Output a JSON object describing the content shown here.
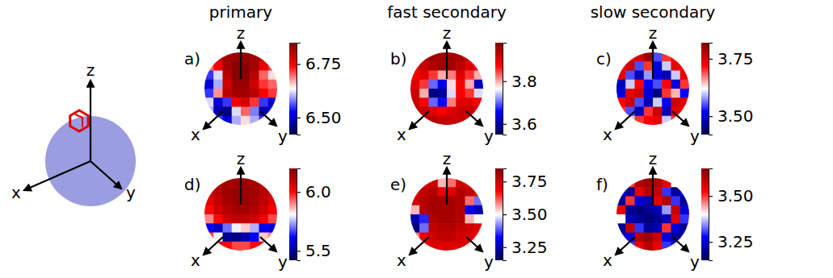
{
  "chart_data": {
    "type": "heatmap",
    "columns": [
      "primary",
      "fast secondary",
      "slow secondary"
    ],
    "axis_labels": [
      "x",
      "y",
      "z"
    ],
    "panels": [
      {
        "letter": "a)",
        "colorbar": {
          "range": [
            6.42,
            6.85
          ],
          "ticks": [
            {
              "value": 6.5,
              "label": "6.50"
            },
            {
              "value": 6.75,
              "label": "6.75"
            }
          ]
        },
        "cells": [
          [
            6.8,
            6.8,
            6.82,
            6.83,
            6.83,
            6.82,
            6.8,
            6.8
          ],
          [
            6.7,
            6.75,
            6.82,
            6.84,
            6.84,
            6.82,
            6.76,
            6.72
          ],
          [
            6.55,
            6.62,
            6.8,
            6.84,
            6.84,
            6.8,
            6.7,
            6.65
          ],
          [
            6.5,
            6.6,
            6.78,
            6.83,
            6.83,
            6.78,
            6.72,
            6.7
          ],
          [
            6.55,
            6.68,
            6.8,
            6.82,
            6.82,
            6.8,
            6.75,
            6.72
          ],
          [
            6.62,
            6.5,
            6.55,
            6.75,
            6.78,
            6.72,
            6.55,
            6.5
          ],
          [
            6.6,
            6.48,
            6.45,
            6.62,
            6.7,
            6.58,
            6.48,
            6.5
          ],
          [
            6.6,
            6.55,
            6.5,
            6.6,
            6.65,
            6.6,
            6.55,
            6.55
          ]
        ]
      },
      {
        "letter": "b)",
        "colorbar": {
          "range": [
            3.55,
            3.98
          ],
          "ticks": [
            3.6,
            3.8
          ]
        },
        "cells": [
          [
            3.92,
            3.94,
            3.95,
            3.95,
            3.95,
            3.94,
            3.92,
            3.9
          ],
          [
            3.9,
            3.92,
            3.94,
            3.95,
            3.95,
            3.93,
            3.9,
            3.88
          ],
          [
            3.88,
            3.9,
            3.85,
            3.8,
            3.82,
            3.9,
            3.85,
            3.8
          ],
          [
            3.9,
            3.85,
            3.7,
            3.65,
            3.78,
            3.88,
            3.8,
            3.62
          ],
          [
            3.92,
            3.8,
            3.58,
            3.6,
            3.75,
            3.88,
            3.85,
            3.75
          ],
          [
            3.92,
            3.88,
            3.7,
            3.66,
            3.82,
            3.9,
            3.9,
            3.88
          ],
          [
            3.93,
            3.92,
            3.9,
            3.88,
            3.9,
            3.92,
            3.92,
            3.9
          ],
          [
            3.92,
            3.93,
            3.93,
            3.92,
            3.92,
            3.92,
            3.92,
            3.9
          ]
        ]
      },
      {
        "letter": "c)",
        "colorbar": {
          "range": [
            3.42,
            3.82
          ],
          "ticks": [
            {
              "value": 3.5,
              "label": "3.50"
            },
            3.75
          ]
        },
        "cells": [
          [
            3.7,
            3.72,
            3.75,
            3.8,
            3.55,
            3.7,
            3.72,
            3.7
          ],
          [
            3.72,
            3.76,
            3.55,
            3.7,
            3.5,
            3.6,
            3.74,
            3.72
          ],
          [
            3.74,
            3.55,
            3.48,
            3.58,
            3.5,
            3.48,
            3.6,
            3.74
          ],
          [
            3.48,
            3.6,
            3.72,
            3.52,
            3.55,
            3.72,
            3.5,
            3.7
          ],
          [
            3.5,
            3.74,
            3.76,
            3.5,
            3.45,
            3.7,
            3.65,
            3.52
          ],
          [
            3.72,
            3.76,
            3.55,
            3.48,
            3.6,
            3.52,
            3.76,
            3.74
          ],
          [
            3.7,
            3.55,
            3.48,
            3.7,
            3.76,
            3.48,
            3.74,
            3.72
          ],
          [
            3.7,
            3.6,
            3.7,
            3.72,
            3.74,
            3.6,
            3.7,
            3.7
          ]
        ]
      },
      {
        "letter": "d)",
        "colorbar": {
          "range": [
            5.42,
            6.2
          ],
          "ticks": [
            5.5,
            {
              "value": 6.0,
              "label": "6.0"
            }
          ]
        },
        "cells": [
          [
            6.1,
            6.12,
            6.14,
            6.15,
            6.15,
            6.14,
            6.12,
            6.1
          ],
          [
            6.08,
            6.12,
            6.15,
            6.16,
            6.16,
            6.15,
            6.12,
            6.08
          ],
          [
            6.05,
            6.1,
            6.14,
            6.16,
            6.16,
            6.14,
            6.1,
            6.06
          ],
          [
            6.0,
            6.08,
            6.12,
            6.14,
            6.14,
            6.12,
            6.08,
            6.02
          ],
          [
            5.9,
            6.0,
            6.08,
            6.1,
            6.1,
            6.08,
            6.02,
            5.95
          ],
          [
            5.6,
            5.55,
            5.7,
            5.8,
            5.85,
            5.75,
            5.6,
            5.58
          ],
          [
            5.95,
            5.8,
            5.5,
            5.48,
            5.52,
            5.6,
            5.85,
            5.9
          ],
          [
            6.05,
            6.08,
            6.0,
            5.95,
            5.95,
            6.0,
            6.05,
            6.05
          ]
        ]
      },
      {
        "letter": "e)",
        "colorbar": {
          "range": [
            3.15,
            3.85
          ],
          "ticks": [
            3.25,
            {
              "value": 3.5,
              "label": "3.50"
            },
            3.75
          ]
        },
        "cells": [
          [
            3.7,
            3.72,
            3.75,
            3.55,
            3.6,
            3.75,
            3.72,
            3.7
          ],
          [
            3.72,
            3.76,
            3.78,
            3.7,
            3.72,
            3.78,
            3.76,
            3.72
          ],
          [
            3.74,
            3.78,
            3.8,
            3.8,
            3.8,
            3.78,
            3.6,
            3.4
          ],
          [
            3.55,
            3.78,
            3.8,
            3.8,
            3.8,
            3.78,
            3.3,
            3.25
          ],
          [
            3.25,
            3.35,
            3.78,
            3.8,
            3.8,
            3.78,
            3.55,
            3.5
          ],
          [
            3.2,
            3.4,
            3.76,
            3.78,
            3.78,
            3.76,
            3.74,
            3.72
          ],
          [
            3.6,
            3.7,
            3.74,
            3.76,
            3.76,
            3.74,
            3.72,
            3.7
          ],
          [
            3.7,
            3.72,
            3.72,
            3.72,
            3.72,
            3.72,
            3.7,
            3.7
          ]
        ]
      },
      {
        "letter": "f)",
        "colorbar": {
          "range": [
            3.15,
            3.65
          ],
          "ticks": [
            3.25,
            {
              "value": 3.5,
              "label": "3.50"
            }
          ]
        },
        "cells": [
          [
            3.4,
            3.5,
            3.6,
            3.62,
            3.6,
            3.55,
            3.4,
            3.3
          ],
          [
            3.25,
            3.2,
            3.55,
            3.6,
            3.58,
            3.3,
            3.2,
            3.25
          ],
          [
            3.2,
            3.5,
            3.25,
            3.22,
            3.55,
            3.6,
            3.3,
            3.2
          ],
          [
            3.55,
            3.2,
            3.18,
            3.2,
            3.22,
            3.35,
            3.58,
            3.25
          ],
          [
            3.4,
            3.22,
            3.2,
            3.18,
            3.2,
            3.22,
            3.55,
            3.3
          ],
          [
            3.2,
            3.58,
            3.3,
            3.2,
            3.22,
            3.5,
            3.25,
            3.2
          ],
          [
            3.22,
            3.25,
            3.6,
            3.62,
            3.58,
            3.25,
            3.2,
            3.22
          ],
          [
            3.25,
            3.3,
            3.55,
            3.6,
            3.55,
            3.3,
            3.25,
            3.25
          ]
        ]
      }
    ]
  }
}
